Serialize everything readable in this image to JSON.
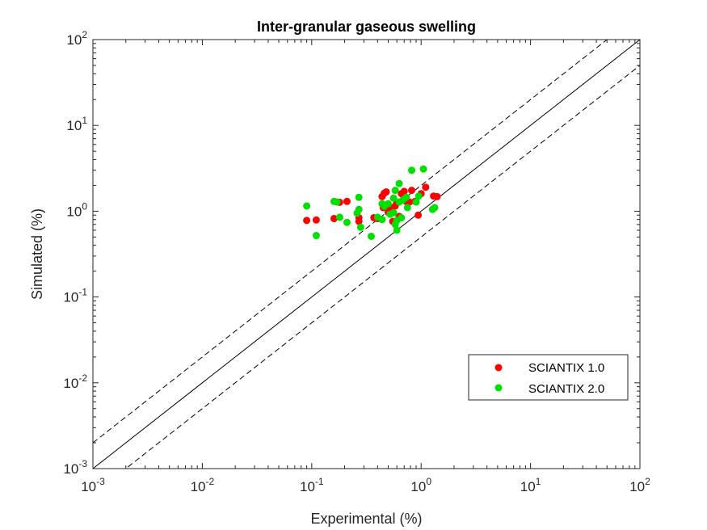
{
  "chart_data": {
    "type": "scatter",
    "title": "Inter-granular gaseous swelling",
    "xlabel": "Experimental (%)",
    "ylabel": "Simulated (%)",
    "xscale": "log",
    "yscale": "log",
    "xlim": [
      0.001,
      100
    ],
    "ylim": [
      0.001,
      100
    ],
    "x_ticks": [
      {
        "value": 0.001,
        "base": "10",
        "exp": "-3"
      },
      {
        "value": 0.01,
        "base": "10",
        "exp": "-2"
      },
      {
        "value": 0.1,
        "base": "10",
        "exp": "-1"
      },
      {
        "value": 1,
        "base": "10",
        "exp": "0"
      },
      {
        "value": 10,
        "base": "10",
        "exp": "1"
      },
      {
        "value": 100,
        "base": "10",
        "exp": "2"
      }
    ],
    "y_ticks": [
      {
        "value": 0.001,
        "base": "10",
        "exp": "-3"
      },
      {
        "value": 0.01,
        "base": "10",
        "exp": "-2"
      },
      {
        "value": 0.1,
        "base": "10",
        "exp": "-1"
      },
      {
        "value": 1,
        "base": "10",
        "exp": "0"
      },
      {
        "value": 10,
        "base": "10",
        "exp": "1"
      },
      {
        "value": 100,
        "base": "10",
        "exp": "2"
      }
    ],
    "grid": false,
    "legend_position": "lower-right",
    "reference_lines": [
      {
        "kind": "identity",
        "factor": 1,
        "style": "solid"
      },
      {
        "kind": "upper",
        "factor": 2,
        "style": "dashed"
      },
      {
        "kind": "lower",
        "factor": 0.5,
        "style": "dashed"
      }
    ],
    "series": [
      {
        "name": "SCIANTIX 1.0",
        "color": "#ff0000",
        "points": [
          [
            0.09,
            0.78
          ],
          [
            0.11,
            0.79
          ],
          [
            0.16,
            0.82
          ],
          [
            0.18,
            1.27
          ],
          [
            0.21,
            1.3
          ],
          [
            0.27,
            0.84
          ],
          [
            0.27,
            0.76
          ],
          [
            0.37,
            0.84
          ],
          [
            0.4,
            0.82
          ],
          [
            0.44,
            1.48
          ],
          [
            0.46,
            1.62
          ],
          [
            0.48,
            1.68
          ],
          [
            0.5,
            0.97
          ],
          [
            0.52,
            1.1
          ],
          [
            0.55,
            0.76
          ],
          [
            0.58,
            1.15
          ],
          [
            0.6,
            1.25
          ],
          [
            0.63,
            0.87
          ],
          [
            0.66,
            1.6
          ],
          [
            0.7,
            1.7
          ],
          [
            0.73,
            1.3
          ],
          [
            0.78,
            1.28
          ],
          [
            0.82,
            1.75
          ],
          [
            0.88,
            1.3
          ],
          [
            0.94,
            0.9
          ],
          [
            1.0,
            1.6
          ],
          [
            1.1,
            1.9
          ],
          [
            1.3,
            1.5
          ],
          [
            1.4,
            1.48
          ],
          [
            0.45,
            1.1
          ]
        ]
      },
      {
        "name": "SCIANTIX 2.0",
        "color": "#00e000",
        "points": [
          [
            0.09,
            1.15
          ],
          [
            0.11,
            0.52
          ],
          [
            0.16,
            1.3
          ],
          [
            0.17,
            1.28
          ],
          [
            0.18,
            0.85
          ],
          [
            0.21,
            0.74
          ],
          [
            0.26,
            0.95
          ],
          [
            0.27,
            1.05
          ],
          [
            0.27,
            1.45
          ],
          [
            0.28,
            0.65
          ],
          [
            0.35,
            0.51
          ],
          [
            0.4,
            0.85
          ],
          [
            0.44,
            0.8
          ],
          [
            0.44,
            1.22
          ],
          [
            0.46,
            1.14
          ],
          [
            0.5,
            1.22
          ],
          [
            0.52,
            0.92
          ],
          [
            0.56,
            0.96
          ],
          [
            0.56,
            1.42
          ],
          [
            0.58,
            1.75
          ],
          [
            0.6,
            0.6
          ],
          [
            0.6,
            0.78
          ],
          [
            0.63,
            2.1
          ],
          [
            0.63,
            1.28
          ],
          [
            0.66,
            0.84
          ],
          [
            0.68,
            1.35
          ],
          [
            0.73,
            1.45
          ],
          [
            0.75,
            1.1
          ],
          [
            0.82,
            3.0
          ],
          [
            0.9,
            1.28
          ],
          [
            0.95,
            1.5
          ],
          [
            1.05,
            3.1
          ],
          [
            1.27,
            1.05
          ],
          [
            1.33,
            1.1
          ],
          [
            0.58,
            0.7
          ]
        ]
      }
    ]
  }
}
